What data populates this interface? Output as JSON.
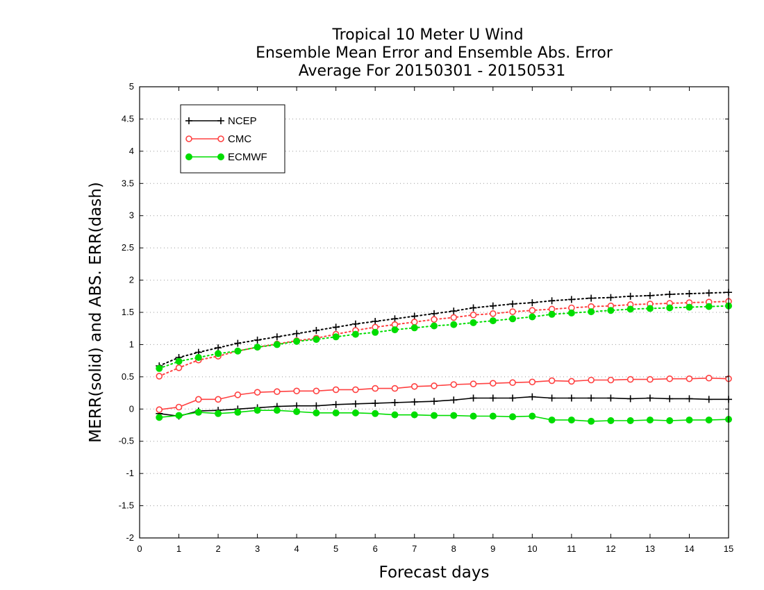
{
  "chart_data": {
    "type": "line",
    "title_lines": [
      "Tropical 10 Meter U Wind",
      "Ensemble Mean Error and Ensemble Abs. Error",
      "Average For 20150301 - 20150531"
    ],
    "xlabel": "Forecast days",
    "ylabel": "MERR(solid) and ABS. ERR(dash)",
    "xlim": [
      0,
      15
    ],
    "ylim": [
      -2,
      5
    ],
    "x_ticks": [
      0,
      1,
      2,
      3,
      4,
      5,
      6,
      7,
      8,
      9,
      10,
      11,
      12,
      13,
      14,
      15
    ],
    "y_ticks": [
      -2,
      -1.5,
      -1,
      -0.5,
      0,
      0.5,
      1,
      1.5,
      2,
      2.5,
      3,
      3.5,
      4,
      4.5,
      5
    ],
    "grid": "horizontal dotted",
    "legend_position": "top-left",
    "x": [
      0.5,
      1,
      1.5,
      2,
      2.5,
      3,
      3.5,
      4,
      4.5,
      5,
      5.5,
      6,
      6.5,
      7,
      7.5,
      8,
      8.5,
      9,
      9.5,
      10,
      10.5,
      11,
      11.5,
      12,
      12.5,
      13,
      13.5,
      14,
      14.5,
      15
    ],
    "series": [
      {
        "name": "NCEP",
        "color": "#000000",
        "marker": "plus",
        "merr": [
          -0.07,
          -0.11,
          -0.03,
          -0.02,
          0.0,
          0.02,
          0.04,
          0.05,
          0.05,
          0.07,
          0.08,
          0.09,
          0.1,
          0.11,
          0.12,
          0.14,
          0.17,
          0.17,
          0.17,
          0.19,
          0.17,
          0.17,
          0.17,
          0.17,
          0.16,
          0.17,
          0.16,
          0.16,
          0.15,
          0.15
        ],
        "abs_err": [
          0.67,
          0.8,
          0.88,
          0.95,
          1.02,
          1.07,
          1.12,
          1.17,
          1.22,
          1.27,
          1.32,
          1.36,
          1.4,
          1.44,
          1.48,
          1.52,
          1.57,
          1.6,
          1.63,
          1.65,
          1.68,
          1.7,
          1.72,
          1.73,
          1.75,
          1.76,
          1.78,
          1.79,
          1.8,
          1.81
        ]
      },
      {
        "name": "CMC",
        "color": "#ff4040",
        "marker": "open-circle",
        "merr": [
          -0.01,
          0.03,
          0.15,
          0.15,
          0.22,
          0.26,
          0.27,
          0.28,
          0.28,
          0.3,
          0.3,
          0.32,
          0.32,
          0.35,
          0.36,
          0.38,
          0.39,
          0.4,
          0.41,
          0.42,
          0.44,
          0.43,
          0.45,
          0.45,
          0.46,
          0.46,
          0.47,
          0.47,
          0.48,
          0.47
        ],
        "abs_err": [
          0.51,
          0.64,
          0.76,
          0.82,
          0.9,
          0.96,
          1.01,
          1.06,
          1.1,
          1.16,
          1.22,
          1.27,
          1.31,
          1.35,
          1.39,
          1.42,
          1.46,
          1.48,
          1.51,
          1.53,
          1.55,
          1.57,
          1.59,
          1.6,
          1.62,
          1.63,
          1.64,
          1.65,
          1.66,
          1.67
        ]
      },
      {
        "name": "ECMWF",
        "color": "#00dd00",
        "marker": "filled-circle",
        "merr": [
          -0.13,
          -0.1,
          -0.05,
          -0.07,
          -0.05,
          -0.02,
          -0.02,
          -0.04,
          -0.06,
          -0.06,
          -0.06,
          -0.07,
          -0.09,
          -0.09,
          -0.1,
          -0.1,
          -0.11,
          -0.11,
          -0.12,
          -0.11,
          -0.17,
          -0.17,
          -0.19,
          -0.18,
          -0.18,
          -0.17,
          -0.18,
          -0.17,
          -0.17,
          -0.16
        ],
        "abs_err": [
          0.63,
          0.74,
          0.8,
          0.86,
          0.9,
          0.96,
          1.0,
          1.05,
          1.08,
          1.12,
          1.16,
          1.19,
          1.23,
          1.26,
          1.29,
          1.31,
          1.34,
          1.37,
          1.4,
          1.43,
          1.47,
          1.49,
          1.51,
          1.53,
          1.55,
          1.56,
          1.57,
          1.58,
          1.59,
          1.6
        ]
      }
    ]
  }
}
